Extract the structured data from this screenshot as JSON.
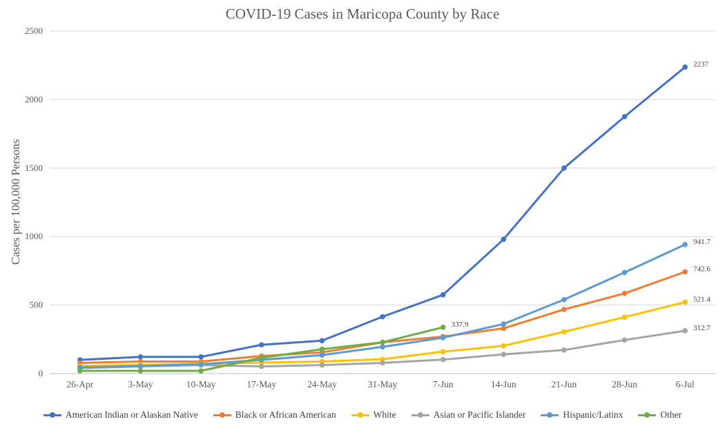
{
  "chart_data": {
    "type": "line",
    "title": "COVID-19 Cases in Maricopa County by Race",
    "xlabel": "",
    "ylabel": "Cases per 100,000 Persons",
    "ylim": [
      0,
      2500
    ],
    "yticks": [
      0,
      500,
      1000,
      1500,
      2000,
      2500
    ],
    "grid": true,
    "legend_position": "bottom",
    "categories": [
      "26-Apr",
      "3-May",
      "10-May",
      "17-May",
      "24-May",
      "31-May",
      "7-Jun",
      "14-Jun",
      "21-Jun",
      "28-Jun",
      "6-Jul"
    ],
    "series": [
      {
        "name": "American Indian or Alaskan Native",
        "color": "#4472C4",
        "values": [
          100,
          122,
          122,
          210,
          240,
          415,
          575,
          980,
          1500,
          1875,
          2237
        ],
        "end_label": "2237"
      },
      {
        "name": "Black or African American",
        "color": "#ED7D31",
        "values": [
          78,
          88,
          88,
          128,
          155,
          228,
          270,
          330,
          468,
          585,
          742.6
        ],
        "end_label": "742.6"
      },
      {
        "name": "White",
        "color": "#FFC000",
        "values": [
          55,
          65,
          72,
          80,
          88,
          105,
          160,
          203,
          305,
          412,
          521.4
        ],
        "end_label": "521.4"
      },
      {
        "name": "Asian or Pacific Islander",
        "color": "#A5A5A5",
        "values": [
          40,
          52,
          62,
          52,
          62,
          78,
          102,
          140,
          172,
          245,
          312.7
        ],
        "end_label": "312.7"
      },
      {
        "name": "Hispanic/Latinx",
        "color": "#5B9BD5",
        "values": [
          45,
          55,
          68,
          100,
          135,
          195,
          262,
          362,
          540,
          738,
          941.7
        ],
        "end_label": "941.7"
      },
      {
        "name": "Other",
        "color": "#70AD47",
        "values": [
          20,
          20,
          20,
          115,
          178,
          228,
          337.9,
          null,
          null,
          null,
          null
        ],
        "end_label": "337.9"
      }
    ]
  }
}
